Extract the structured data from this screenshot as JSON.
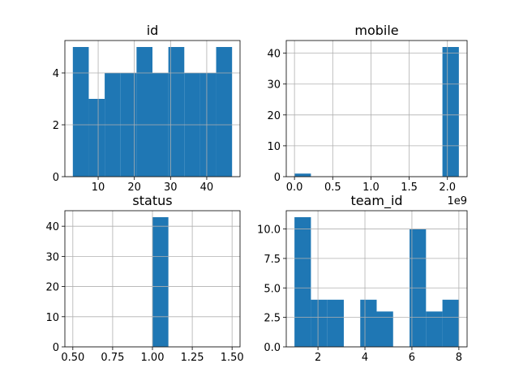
{
  "chart_data": [
    {
      "type": "histogram",
      "title": "id",
      "color": "#1f77b4",
      "grid": true,
      "bins": [
        3,
        7.4,
        11.8,
        16.2,
        20.6,
        25,
        29.4,
        33.8,
        38.2,
        42.6,
        47
      ],
      "values": [
        5,
        3,
        4,
        4,
        5,
        4,
        5,
        4,
        4,
        5
      ],
      "xlim": [
        0.8,
        49.2
      ],
      "xticks": [
        10,
        20,
        30,
        40
      ],
      "ylim": [
        0,
        5.25
      ],
      "yticks": [
        0,
        2,
        4
      ]
    },
    {
      "type": "histogram",
      "title": "mobile",
      "color": "#1f77b4",
      "grid": true,
      "bins": [
        0,
        215000000,
        430000000,
        645000000,
        860000000,
        1075000000,
        1290000000,
        1505000000,
        1720000000,
        1935000000,
        2150000000
      ],
      "values": [
        1,
        0,
        0,
        0,
        0,
        0,
        0,
        0,
        0,
        42
      ],
      "xlim": [
        -107500000,
        2257500000
      ],
      "xticks": [
        {
          "value": 0,
          "label": "0.0"
        },
        {
          "value": 500000000,
          "label": "0.5"
        },
        {
          "value": 1000000000,
          "label": "1.0"
        },
        {
          "value": 1500000000,
          "label": "1.5"
        },
        {
          "value": 2000000000,
          "label": "2.0"
        }
      ],
      "x_offset_label": "1e9",
      "ylim": [
        0,
        44.1
      ],
      "yticks": [
        0,
        10,
        20,
        30,
        40
      ]
    },
    {
      "type": "histogram",
      "title": "status",
      "color": "#1f77b4",
      "grid": true,
      "bins": [
        0.5,
        0.6,
        0.7,
        0.8,
        0.9,
        1.0,
        1.1,
        1.2,
        1.3,
        1.4,
        1.5
      ],
      "values": [
        0,
        0,
        0,
        0,
        0,
        43,
        0,
        0,
        0,
        0
      ],
      "xlim": [
        0.45,
        1.55
      ],
      "xticks": [
        {
          "value": 0.5,
          "label": "0.50"
        },
        0.75,
        {
          "value": 1.0,
          "label": "1.00"
        },
        1.25,
        {
          "value": 1.5,
          "label": "1.50"
        }
      ],
      "ylim": [
        0,
        45.15
      ],
      "yticks": [
        0,
        10,
        20,
        30,
        40
      ]
    },
    {
      "type": "histogram",
      "title": "team_id",
      "color": "#1f77b4",
      "grid": true,
      "bins": [
        1,
        1.7,
        2.4,
        3.1,
        3.8,
        4.5,
        5.2,
        5.9,
        6.6,
        7.3,
        8
      ],
      "values": [
        11,
        4,
        4,
        0,
        4,
        3,
        0,
        10,
        3,
        4
      ],
      "xlim": [
        0.65,
        8.35
      ],
      "xticks": [
        2,
        4,
        6,
        8
      ],
      "ylim": [
        0,
        11.55
      ],
      "yticks": [
        {
          "value": 0,
          "label": "0.0"
        },
        2.5,
        {
          "value": 5,
          "label": "5.0"
        },
        7.5,
        {
          "value": 10,
          "label": "10.0"
        }
      ]
    }
  ]
}
